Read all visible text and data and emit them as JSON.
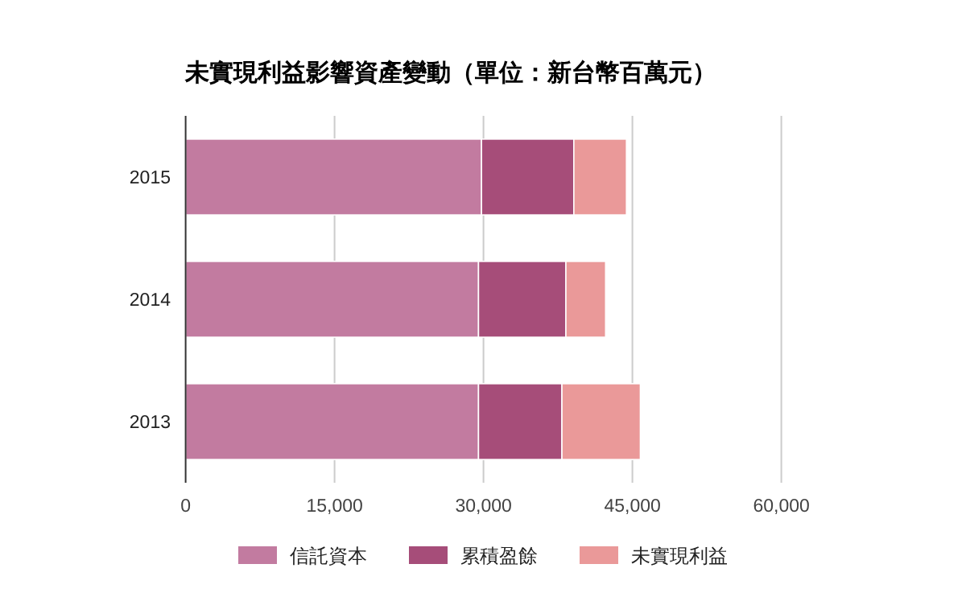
{
  "chart_data": {
    "type": "bar",
    "orientation": "horizontal",
    "stacked": true,
    "title": "未實現利益影響資產變動（單位：新台幣百萬元）",
    "categories": [
      "2015",
      "2014",
      "2013"
    ],
    "series": [
      {
        "name": "信託資本",
        "color": "#c27ba0",
        "values": [
          29800,
          29500,
          29500
        ]
      },
      {
        "name": "累積盈餘",
        "color": "#a64d79",
        "values": [
          9300,
          8800,
          8400
        ]
      },
      {
        "name": "未實現利益",
        "color": "#ea9999",
        "values": [
          5300,
          4000,
          7900
        ]
      }
    ],
    "xlim": [
      0,
      60000
    ],
    "xticks": [
      0,
      {
        "value": 15000,
        "label": "15,000"
      },
      {
        "value": 30000,
        "label": "30,000"
      },
      {
        "value": 45000,
        "label": "45,000"
      },
      {
        "value": 60000,
        "label": "60,000"
      }
    ],
    "grid": "x",
    "legend": "bottom"
  }
}
